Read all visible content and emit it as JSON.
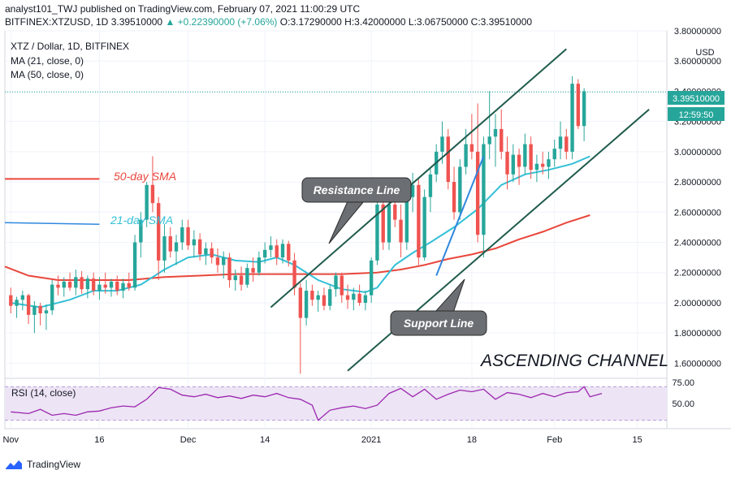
{
  "header": {
    "publisher_line": "analyst101_TWJ published on TradingView.com, February 07, 2021 11:00:29 UTC",
    "symbol": "BITFINEX:XTZUSD, 1D",
    "last": "3.39510000",
    "change": "▲ +0.22390000 (+7.06%)",
    "ohlc": "O:3.17290000 H:3.42000000 L:3.06750000 C:3.39510000"
  },
  "legend": {
    "title": "XTZ / Dollar, 1D, BITFINEX",
    "ma21": "MA (21, close, 0)",
    "ma50": "MA (50, close, 0)"
  },
  "annotations": {
    "sma50": "50-day SMA",
    "sma21": "21-day SMA",
    "resistance": "Resistance Line",
    "support": "Support Line",
    "channel": "ASCENDING CHANNEL"
  },
  "price_tag": {
    "value": "3.39510000",
    "countdown": "12:59:50"
  },
  "currency": "USD",
  "rsi_label": "RSI (14, close)",
  "footer": {
    "brand": "TradingView"
  },
  "colors": {
    "up": "#26a69a",
    "down": "#ef5350",
    "ma21": "#33c0d6",
    "ma50": "#e9473c",
    "channel": "#1f5b4c",
    "blue_line": "#2f88df",
    "rsi": "#9c27b0",
    "rsi_band": "#ede4f5"
  },
  "chart_data": {
    "type": "candlestick",
    "price_axis": {
      "ylim": [
        1.5,
        3.8
      ],
      "ticks": [
        "3.80000000",
        "3.60000000",
        "3.40000000",
        "3.20000000",
        "3.00000000",
        "2.80000000",
        "2.60000000",
        "2.40000000",
        "2.20000000",
        "2.00000000",
        "1.80000000",
        "1.60000000"
      ]
    },
    "rsi_axis": {
      "ylim": [
        20,
        80
      ],
      "ticks": [
        "75.00",
        "50.00"
      ],
      "band": [
        30,
        70
      ]
    },
    "x_axis": {
      "labels": [
        "Nov",
        "16",
        "Dec",
        "14",
        "2021",
        "18",
        "Feb",
        "15"
      ],
      "label_days": [
        0,
        15,
        30,
        43,
        61,
        78,
        92,
        106
      ],
      "xlim": [
        -1,
        111
      ]
    },
    "candles": [
      [
        2.05,
        2.1,
        1.93,
        1.98
      ],
      [
        1.98,
        2.04,
        1.9,
        2.02
      ],
      [
        2.02,
        2.08,
        1.95,
        2.05
      ],
      [
        2.05,
        2.06,
        1.86,
        1.92
      ],
      [
        1.92,
        2.01,
        1.8,
        1.98
      ],
      [
        1.98,
        2.0,
        1.85,
        1.93
      ],
      [
        1.93,
        1.99,
        1.82,
        1.95
      ],
      [
        1.95,
        2.15,
        1.92,
        2.12
      ],
      [
        2.12,
        2.18,
        2.05,
        2.1
      ],
      [
        2.1,
        2.17,
        2.04,
        2.14
      ],
      [
        2.14,
        2.2,
        2.08,
        2.1
      ],
      [
        2.1,
        2.22,
        2.05,
        2.17
      ],
      [
        2.17,
        2.21,
        2.06,
        2.09
      ],
      [
        2.09,
        2.18,
        2.03,
        2.16
      ],
      [
        2.16,
        2.2,
        2.05,
        2.08
      ],
      [
        2.08,
        2.17,
        2.02,
        2.12
      ],
      [
        2.12,
        2.2,
        2.06,
        2.1
      ],
      [
        2.1,
        2.16,
        2.04,
        2.14
      ],
      [
        2.14,
        2.18,
        2.05,
        2.08
      ],
      [
        2.08,
        2.16,
        2.03,
        2.13
      ],
      [
        2.13,
        2.2,
        2.08,
        2.1
      ],
      [
        2.1,
        2.45,
        2.08,
        2.4
      ],
      [
        2.4,
        2.6,
        2.3,
        2.55
      ],
      [
        2.55,
        2.8,
        2.5,
        2.78
      ],
      [
        2.78,
        2.97,
        2.6,
        2.66
      ],
      [
        2.66,
        2.7,
        2.15,
        2.28
      ],
      [
        2.28,
        2.52,
        2.2,
        2.44
      ],
      [
        2.44,
        2.5,
        2.3,
        2.34
      ],
      [
        2.34,
        2.45,
        2.25,
        2.4
      ],
      [
        2.4,
        2.55,
        2.35,
        2.5
      ],
      [
        2.5,
        2.55,
        2.35,
        2.38
      ],
      [
        2.38,
        2.48,
        2.3,
        2.42
      ],
      [
        2.42,
        2.46,
        2.28,
        2.32
      ],
      [
        2.32,
        2.4,
        2.25,
        2.36
      ],
      [
        2.36,
        2.4,
        2.26,
        2.3
      ],
      [
        2.3,
        2.36,
        2.2,
        2.25
      ],
      [
        2.25,
        2.34,
        2.16,
        2.3
      ],
      [
        2.3,
        2.33,
        2.1,
        2.15
      ],
      [
        2.15,
        2.22,
        2.08,
        2.18
      ],
      [
        2.18,
        2.24,
        2.08,
        2.12
      ],
      [
        2.12,
        2.26,
        2.1,
        2.23
      ],
      [
        2.23,
        2.3,
        2.14,
        2.2
      ],
      [
        2.2,
        2.34,
        2.18,
        2.3
      ],
      [
        2.3,
        2.4,
        2.26,
        2.35
      ],
      [
        2.35,
        2.44,
        2.3,
        2.38
      ],
      [
        2.38,
        2.42,
        2.25,
        2.3
      ],
      [
        2.3,
        2.42,
        2.26,
        2.39
      ],
      [
        2.39,
        2.41,
        2.24,
        2.28
      ],
      [
        2.28,
        2.33,
        2.05,
        2.1
      ],
      [
        2.1,
        2.13,
        1.53,
        1.9
      ],
      [
        1.9,
        2.15,
        1.85,
        2.08
      ],
      [
        2.08,
        2.12,
        1.98,
        2.02
      ],
      [
        2.02,
        2.08,
        1.94,
        2.05
      ],
      [
        2.05,
        2.1,
        1.95,
        1.98
      ],
      [
        1.98,
        2.12,
        1.95,
        2.09
      ],
      [
        2.09,
        2.2,
        2.04,
        2.18
      ],
      [
        2.18,
        2.2,
        2.0,
        2.05
      ],
      [
        2.05,
        2.12,
        1.96,
        2.02
      ],
      [
        2.02,
        2.1,
        1.95,
        2.06
      ],
      [
        2.06,
        2.12,
        1.98,
        2.0
      ],
      [
        2.0,
        2.08,
        1.95,
        2.05
      ],
      [
        2.05,
        2.3,
        2.0,
        2.28
      ],
      [
        2.28,
        2.72,
        2.25,
        2.65
      ],
      [
        2.65,
        2.82,
        2.35,
        2.4
      ],
      [
        2.4,
        2.72,
        2.35,
        2.65
      ],
      [
        2.65,
        2.8,
        2.5,
        2.55
      ],
      [
        2.55,
        2.65,
        2.3,
        2.4
      ],
      [
        2.4,
        2.75,
        2.35,
        2.7
      ],
      [
        2.7,
        2.86,
        2.6,
        2.78
      ],
      [
        2.78,
        2.82,
        2.25,
        2.3
      ],
      [
        2.3,
        2.75,
        2.28,
        2.7
      ],
      [
        2.7,
        2.9,
        2.6,
        2.85
      ],
      [
        2.85,
        3.05,
        2.8,
        3.0
      ],
      [
        3.0,
        3.2,
        2.92,
        3.1
      ],
      [
        3.1,
        3.15,
        2.75,
        2.8
      ],
      [
        2.8,
        2.9,
        2.55,
        2.6
      ],
      [
        2.6,
        2.95,
        2.55,
        2.9
      ],
      [
        2.9,
        3.15,
        2.85,
        3.05
      ],
      [
        3.05,
        3.25,
        2.95,
        3.0
      ],
      [
        3.0,
        3.32,
        2.4,
        2.45
      ],
      [
        2.45,
        3.1,
        2.3,
        3.05
      ],
      [
        3.05,
        3.4,
        2.95,
        3.1
      ],
      [
        3.1,
        3.25,
        2.9,
        3.15
      ],
      [
        3.15,
        3.28,
        2.95,
        3.0
      ],
      [
        3.0,
        3.1,
        2.75,
        2.85
      ],
      [
        2.85,
        3.05,
        2.8,
        2.98
      ],
      [
        2.98,
        3.02,
        2.78,
        2.9
      ],
      [
        2.9,
        3.12,
        2.85,
        3.05
      ],
      [
        3.05,
        3.1,
        2.82,
        2.88
      ],
      [
        2.88,
        2.98,
        2.8,
        2.92
      ],
      [
        2.92,
        3.0,
        2.85,
        2.9
      ],
      [
        2.9,
        3.0,
        2.82,
        2.95
      ],
      [
        2.95,
        3.08,
        2.9,
        3.02
      ],
      [
        3.02,
        3.2,
        2.95,
        3.1
      ],
      [
        3.1,
        3.15,
        2.95,
        3.0
      ],
      [
        3.0,
        3.5,
        2.95,
        3.45
      ],
      [
        3.45,
        3.48,
        3.15,
        3.17
      ],
      [
        3.17,
        3.42,
        3.07,
        3.4
      ]
    ],
    "ma21": [
      [
        0,
        2.0
      ],
      [
        5,
        1.97
      ],
      [
        10,
        2.02
      ],
      [
        14,
        2.08
      ],
      [
        18,
        2.08
      ],
      [
        22,
        2.12
      ],
      [
        26,
        2.22
      ],
      [
        30,
        2.3
      ],
      [
        34,
        2.32
      ],
      [
        38,
        2.28
      ],
      [
        42,
        2.27
      ],
      [
        45,
        2.3
      ],
      [
        48,
        2.25
      ],
      [
        52,
        2.15
      ],
      [
        56,
        2.09
      ],
      [
        60,
        2.07
      ],
      [
        62,
        2.1
      ],
      [
        65,
        2.25
      ],
      [
        68,
        2.33
      ],
      [
        71,
        2.4
      ],
      [
        75,
        2.5
      ],
      [
        79,
        2.62
      ],
      [
        83,
        2.78
      ],
      [
        87,
        2.85
      ],
      [
        91,
        2.88
      ],
      [
        95,
        2.92
      ],
      [
        98,
        2.97
      ]
    ],
    "ma50": [
      [
        -1,
        2.24
      ],
      [
        3,
        2.18
      ],
      [
        8,
        2.15
      ],
      [
        14,
        2.15
      ],
      [
        20,
        2.15
      ],
      [
        26,
        2.17
      ],
      [
        32,
        2.18
      ],
      [
        38,
        2.19
      ],
      [
        44,
        2.19
      ],
      [
        50,
        2.19
      ],
      [
        56,
        2.19
      ],
      [
        62,
        2.2
      ],
      [
        66,
        2.22
      ],
      [
        70,
        2.25
      ],
      [
        74,
        2.29
      ],
      [
        78,
        2.32
      ],
      [
        82,
        2.36
      ],
      [
        86,
        2.42
      ],
      [
        90,
        2.47
      ],
      [
        94,
        2.53
      ],
      [
        98,
        2.58
      ]
    ],
    "sma50_ref_line": [
      [
        -1,
        2.82
      ],
      [
        15,
        2.82
      ]
    ],
    "sma21_ref_line": [
      [
        -1,
        2.53
      ],
      [
        15,
        2.52
      ]
    ],
    "resistance_line": [
      [
        44,
        1.97
      ],
      [
        94,
        3.68
      ]
    ],
    "support_line": [
      [
        57,
        1.55
      ],
      [
        108,
        3.28
      ]
    ],
    "trend_line": [
      [
        72,
        2.18
      ],
      [
        80,
        2.97
      ]
    ],
    "last_price": 3.3951,
    "rsi": [
      [
        0,
        40
      ],
      [
        3,
        38
      ],
      [
        5,
        43
      ],
      [
        7,
        36
      ],
      [
        9,
        38
      ],
      [
        11,
        36
      ],
      [
        13,
        40
      ],
      [
        15,
        41
      ],
      [
        17,
        45
      ],
      [
        19,
        47
      ],
      [
        21,
        46
      ],
      [
        23,
        55
      ],
      [
        24,
        62
      ],
      [
        25,
        69
      ],
      [
        27,
        67
      ],
      [
        29,
        60
      ],
      [
        31,
        58
      ],
      [
        33,
        61
      ],
      [
        35,
        57
      ],
      [
        37,
        59
      ],
      [
        39,
        56
      ],
      [
        41,
        60
      ],
      [
        43,
        58
      ],
      [
        45,
        62
      ],
      [
        47,
        57
      ],
      [
        49,
        55
      ],
      [
        51,
        48
      ],
      [
        52,
        30
      ],
      [
        54,
        42
      ],
      [
        56,
        45
      ],
      [
        58,
        47
      ],
      [
        60,
        44
      ],
      [
        62,
        48
      ],
      [
        64,
        62
      ],
      [
        66,
        68
      ],
      [
        68,
        58
      ],
      [
        70,
        67
      ],
      [
        72,
        55
      ],
      [
        74,
        61
      ],
      [
        76,
        66
      ],
      [
        78,
        64
      ],
      [
        80,
        67
      ],
      [
        82,
        55
      ],
      [
        84,
        63
      ],
      [
        86,
        61
      ],
      [
        88,
        57
      ],
      [
        90,
        62
      ],
      [
        92,
        58
      ],
      [
        94,
        63
      ],
      [
        96,
        64
      ],
      [
        97,
        70
      ],
      [
        98,
        58
      ],
      [
        100,
        62
      ]
    ]
  }
}
